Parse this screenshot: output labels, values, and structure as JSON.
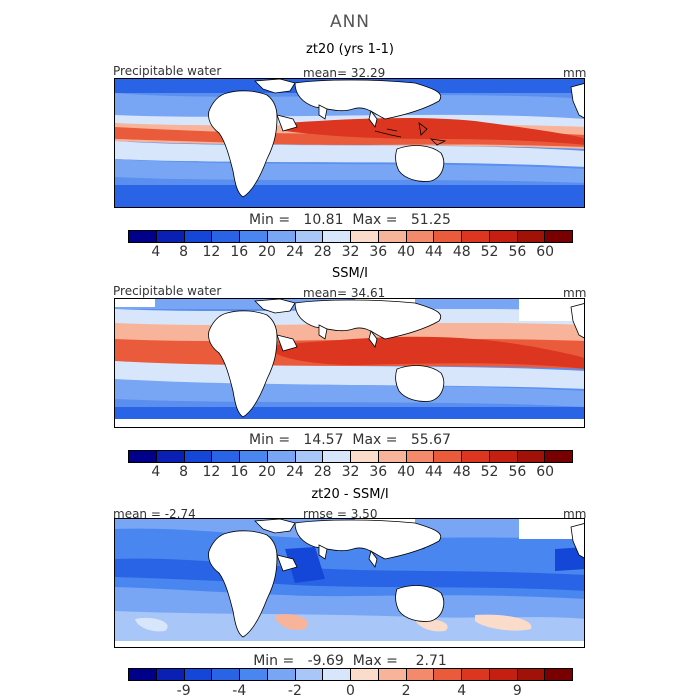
{
  "figure_title": "ANN",
  "colors": {
    "full_scale": [
      "#00008b",
      "#0a1fb4",
      "#1446d8",
      "#2a64e6",
      "#4a86f0",
      "#78a6f4",
      "#a8c6f8",
      "#d8e6fb",
      "#fbdccb",
      "#f7b49a",
      "#f38a6c",
      "#ea5b3c",
      "#dc3520",
      "#c41f10",
      "#a01208",
      "#780000"
    ],
    "diff_scale": [
      "#00008b",
      "#0a1fb4",
      "#1446d8",
      "#2a64e6",
      "#4a86f0",
      "#78a6f4",
      "#a8c6f8",
      "#d8e6fb",
      "#fbdccb",
      "#f7b49a",
      "#f38a6c",
      "#ea5b3c",
      "#dc3520",
      "#c41f10",
      "#a01208",
      "#780000"
    ]
  },
  "panels": [
    {
      "title": "zt20 (yrs 1-1)",
      "left_label": "Precipitable water",
      "center_label": "mean=   32.29",
      "units": "mm",
      "stats": "Min =   10.81  Max =   51.25",
      "ticks": [
        "4",
        "8",
        "12",
        "16",
        "20",
        "24",
        "28",
        "32",
        "36",
        "40",
        "44",
        "48",
        "52",
        "56",
        "60"
      ]
    },
    {
      "title": "SSM/I",
      "left_label": "Precipitable water",
      "center_label": "mean=   34.61",
      "units": "mm",
      "stats": "Min =   14.57  Max =   55.67",
      "ticks": [
        "4",
        "8",
        "12",
        "16",
        "20",
        "24",
        "28",
        "32",
        "36",
        "40",
        "44",
        "48",
        "52",
        "56",
        "60"
      ]
    },
    {
      "title": "zt20 - SSM/I",
      "left_label": "mean =   -2.74",
      "center_label": "rmse =    3.50",
      "units": "mm",
      "stats": "Min =   -9.69  Max =    2.71",
      "ticks": [
        "-9",
        "-4",
        "-2",
        "0",
        "2",
        "4",
        "9"
      ]
    }
  ]
}
